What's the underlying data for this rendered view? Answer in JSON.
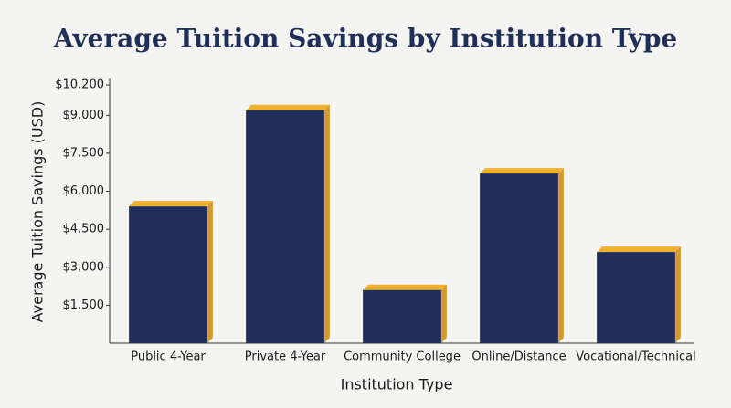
{
  "chart_data": {
    "type": "bar",
    "title": "Average Tuition Savings by Institution Type",
    "x_label": "Institution Type",
    "y_label": "Average Tuition Savings (USD)",
    "categories": [
      "Public 4-Year",
      "Private 4-Year",
      "Community College",
      "Online/Distance",
      "Vocational/Technical"
    ],
    "values": [
      5400,
      9200,
      2100,
      6700,
      3600
    ],
    "color": "#1f2f57",
    "accent_color": "#f0b030",
    "ylim": [
      0,
      10200
    ],
    "yticks": [
      {
        "value": 1500,
        "label": "$1,500"
      },
      {
        "value": 3000,
        "label": "$3,000"
      },
      {
        "value": 4500,
        "label": "$4,500"
      },
      {
        "value": 6000,
        "label": "$6,000"
      },
      {
        "value": 7500,
        "label": "$7,500"
      },
      {
        "value": 9000,
        "label": "$9,000"
      },
      {
        "value": 10200,
        "label": "$10,200"
      }
    ],
    "grid": false
  }
}
